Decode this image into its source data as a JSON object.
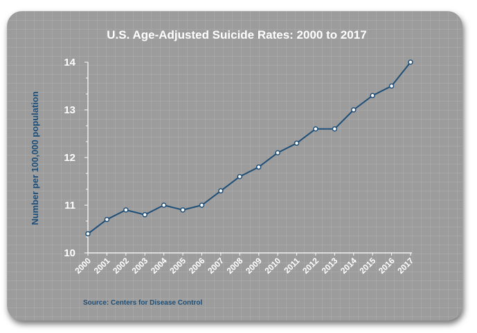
{
  "chart_data": {
    "type": "line",
    "title": "U.S. Age-Adjusted Suicide Rates: 2000 to 2017",
    "xlabel": "",
    "ylabel": "Number per 100,000 population",
    "categories": [
      "2000",
      "2001",
      "2002",
      "2003",
      "2004",
      "2005",
      "2006",
      "2007",
      "2008",
      "2009",
      "2010",
      "2011",
      "2012",
      "2013",
      "2014",
      "2015",
      "2016",
      "2017"
    ],
    "series": [
      {
        "values": [
          10.4,
          10.7,
          10.9,
          10.8,
          11.0,
          10.9,
          11.0,
          11.3,
          11.6,
          11.8,
          12.1,
          12.3,
          12.6,
          12.6,
          13.0,
          13.3,
          13.5,
          14.0
        ]
      }
    ],
    "ylim": [
      10,
      14
    ],
    "yticks": [
      "10",
      "11",
      "12",
      "13",
      "14"
    ],
    "grid": false,
    "source": "Source: Centers for Disease Control",
    "colors": {
      "line": "#1d4e78",
      "marker_fill": "#ffffff",
      "axis": "#ffffff",
      "background": "#9c9c9c"
    }
  }
}
